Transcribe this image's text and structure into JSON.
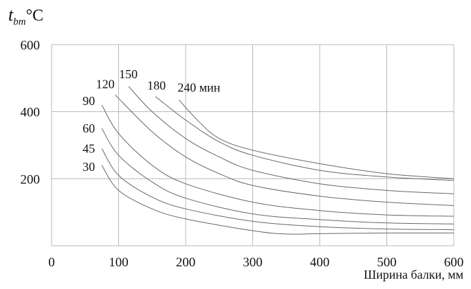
{
  "chart_data": {
    "type": "line",
    "y_label_main": "t",
    "y_label_sub": "bm",
    "y_label_unit": "°C",
    "xlabel": "Ширина балки, мм",
    "xlim": [
      0,
      600
    ],
    "ylim": [
      0,
      600
    ],
    "x_ticks": [
      0,
      100,
      200,
      300,
      400,
      500,
      600
    ],
    "y_ticks": [
      200,
      400,
      600
    ],
    "grid": true,
    "series": [
      {
        "name": "30",
        "x": [
          75,
          100,
          150,
          200,
          300,
          350,
          400,
          500,
          600
        ],
        "y": [
          240,
          165,
          110,
          80,
          45,
          35,
          36,
          38,
          38
        ]
      },
      {
        "name": "45",
        "x": [
          75,
          100,
          150,
          200,
          300,
          400,
          500,
          600
        ],
        "y": [
          290,
          210,
          145,
          110,
          73,
          57,
          50,
          48
        ]
      },
      {
        "name": "60",
        "x": [
          75,
          100,
          150,
          200,
          300,
          400,
          500,
          600
        ],
        "y": [
          350,
          270,
          190,
          142,
          95,
          78,
          68,
          65
        ]
      },
      {
        "name": "90",
        "x": [
          75,
          100,
          150,
          200,
          300,
          400,
          500,
          600
        ],
        "y": [
          420,
          335,
          240,
          185,
          130,
          105,
          92,
          88
        ]
      },
      {
        "name": "120",
        "x": [
          95,
          150,
          200,
          250,
          300,
          400,
          500,
          600
        ],
        "y": [
          450,
          340,
          265,
          215,
          180,
          148,
          130,
          120
        ]
      },
      {
        "name": "150",
        "x": [
          115,
          150,
          200,
          250,
          300,
          400,
          500,
          600
        ],
        "y": [
          475,
          400,
          320,
          265,
          225,
          185,
          165,
          155
        ]
      },
      {
        "name": "180",
        "x": [
          155,
          200,
          250,
          300,
          400,
          500,
          600
        ],
        "y": [
          445,
          375,
          310,
          270,
          225,
          205,
          195
        ]
      },
      {
        "name": "240 мин",
        "x": [
          190,
          220,
          250,
          300,
          400,
          500,
          600
        ],
        "y": [
          435,
          370,
          320,
          285,
          245,
          215,
          200
        ]
      }
    ]
  }
}
